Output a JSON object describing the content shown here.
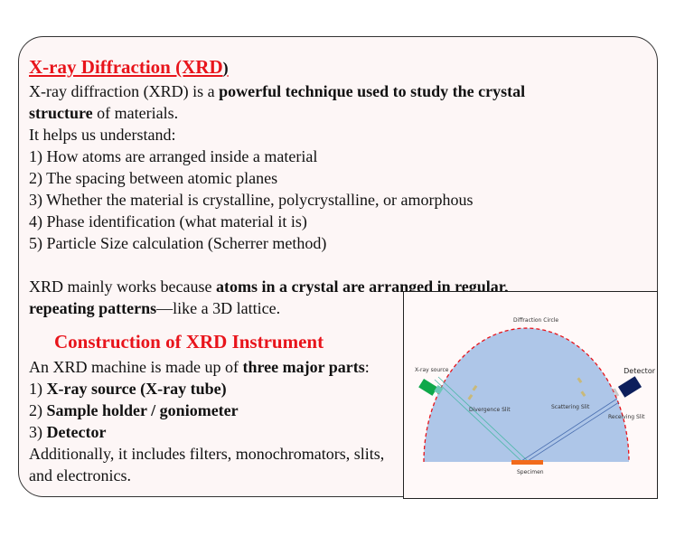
{
  "section1": {
    "title": "X-ray Diffraction (XRD",
    "title_paren": ")",
    "intro_a": "X-ray diffraction (XRD) is a ",
    "intro_bold": "powerful technique used to study the crystal structure",
    "intro_b": " of materials.",
    "helps": "It helps us understand:",
    "items": [
      "1) How atoms are arranged inside a material",
      "2) The spacing between atomic planes",
      "3) Whether the material is crystalline, polycrystalline, or amorphous",
      "4) Phase identification (what material it is)",
      "5) Particle Size calculation (Scherrer method)"
    ],
    "works_a": "XRD mainly works because ",
    "works_bold": "atoms in a crystal are arranged in regular, repeating patterns",
    "works_b": "—like a 3D lattice."
  },
  "section2": {
    "title": "Construction of XRD Instrument",
    "intro_a": "An XRD machine is made up of ",
    "intro_bold": "three major parts",
    "intro_b": ":",
    "parts": [
      {
        "num": "1) ",
        "label": "X-ray source (X-ray tube)"
      },
      {
        "num": "2) ",
        "label": "Sample holder / goniometer"
      },
      {
        "num": "3) ",
        "label": "Detector"
      }
    ],
    "additional": "Additionally, it includes filters, monochromators, slits, and electronics."
  },
  "diagram": {
    "labels": {
      "circle": "Diffraction Circle",
      "source": "X-ray source",
      "detector": "Detector",
      "divergence": "Divergence Slit",
      "scattering": "Scattering Slit",
      "receiving": "Receiving Slit",
      "specimen": "Specimen"
    },
    "colors": {
      "circle_fill": "#aec6e8",
      "circle_edge": "#e8141b",
      "source": "#0fa84a",
      "detector": "#0d1f5c",
      "specimen": "#f26a1b",
      "incident_beam": "#4cb8a8",
      "diffracted_beam": "#4a6fb0"
    }
  }
}
